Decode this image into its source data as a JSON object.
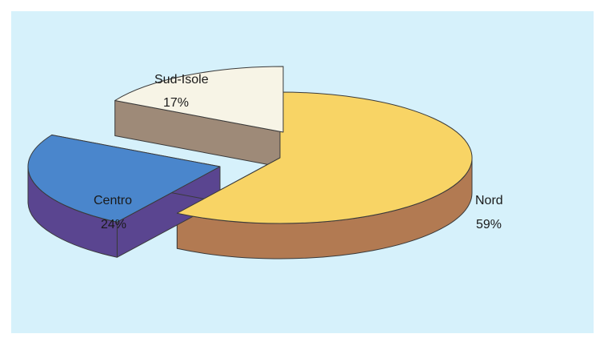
{
  "chart_data": {
    "type": "pie",
    "style": "3d-exploded",
    "title": "",
    "slices": [
      {
        "name": "Nord",
        "value": 59,
        "label": "59%",
        "top_color": "#f8d465",
        "side_color": "#b27a52"
      },
      {
        "name": "Centro",
        "value": 24,
        "label": "24%",
        "top_color": "#4a86cc",
        "side_color": "#5a4590"
      },
      {
        "name": "Sud-Isole",
        "value": 17,
        "label": "17%",
        "top_color": "#f7f4e6",
        "side_color": "#9e8a78"
      }
    ],
    "background": "#d6f1fb",
    "legend": "none"
  }
}
